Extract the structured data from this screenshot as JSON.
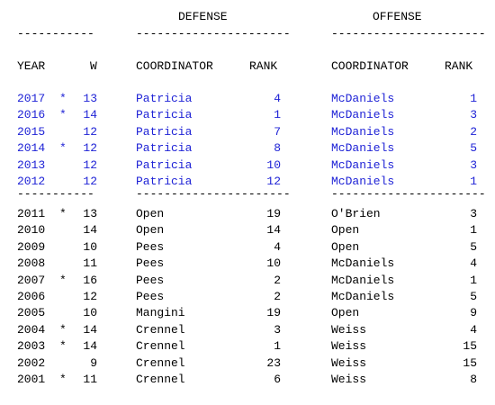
{
  "headers": {
    "defense": "DEFENSE",
    "offense": "OFFENSE"
  },
  "dashes": {
    "year_w": "-----------",
    "defense": "----------------------",
    "offense": "----------------------"
  },
  "columns": {
    "year": "YEAR",
    "w": "W",
    "def_coord": "COORDINATOR",
    "def_rank": "RANK",
    "off_coord": "COORDINATOR",
    "off_rank": "RANK"
  },
  "colors": {
    "highlight": "#1f23d6",
    "text": "#000000"
  },
  "recent_rows": [
    {
      "year": "2017",
      "star": "*",
      "w": "13",
      "def_coord": "Patricia",
      "def_rank": "4",
      "off_coord": "McDaniels",
      "off_rank": "1"
    },
    {
      "year": "2016",
      "star": "*",
      "w": "14",
      "def_coord": "Patricia",
      "def_rank": "1",
      "off_coord": "McDaniels",
      "off_rank": "3"
    },
    {
      "year": "2015",
      "star": "",
      "w": "12",
      "def_coord": "Patricia",
      "def_rank": "7",
      "off_coord": "McDaniels",
      "off_rank": "2"
    },
    {
      "year": "2014",
      "star": "*",
      "w": "12",
      "def_coord": "Patricia",
      "def_rank": "8",
      "off_coord": "McDaniels",
      "off_rank": "5"
    },
    {
      "year": "2013",
      "star": "",
      "w": "12",
      "def_coord": "Patricia",
      "def_rank": "10",
      "off_coord": "McDaniels",
      "off_rank": "3"
    },
    {
      "year": "2012",
      "star": "",
      "w": "12",
      "def_coord": "Patricia",
      "def_rank": "12",
      "off_coord": "McDaniels",
      "off_rank": "1"
    }
  ],
  "older_rows": [
    {
      "year": "2011",
      "star": "*",
      "w": "13",
      "def_coord": "Open",
      "def_rank": "19",
      "off_coord": "O'Brien",
      "off_rank": "3"
    },
    {
      "year": "2010",
      "star": "",
      "w": "14",
      "def_coord": "Open",
      "def_rank": "14",
      "off_coord": "Open",
      "off_rank": "1"
    },
    {
      "year": "2009",
      "star": "",
      "w": "10",
      "def_coord": "Pees",
      "def_rank": "4",
      "off_coord": "Open",
      "off_rank": "5"
    },
    {
      "year": "2008",
      "star": "",
      "w": "11",
      "def_coord": "Pees",
      "def_rank": "10",
      "off_coord": "McDaniels",
      "off_rank": "4"
    },
    {
      "year": "2007",
      "star": "*",
      "w": "16",
      "def_coord": "Pees",
      "def_rank": "2",
      "off_coord": "McDaniels",
      "off_rank": "1"
    },
    {
      "year": "2006",
      "star": "",
      "w": "12",
      "def_coord": "Pees",
      "def_rank": "2",
      "off_coord": "McDaniels",
      "off_rank": "5"
    },
    {
      "year": "2005",
      "star": "",
      "w": "10",
      "def_coord": "Mangini",
      "def_rank": "19",
      "off_coord": "Open",
      "off_rank": "9"
    },
    {
      "year": "2004",
      "star": "*",
      "w": "14",
      "def_coord": "Crennel",
      "def_rank": "3",
      "off_coord": "Weiss",
      "off_rank": "4"
    },
    {
      "year": "2003",
      "star": "*",
      "w": "14",
      "def_coord": "Crennel",
      "def_rank": "1",
      "off_coord": "Weiss",
      "off_rank": "15"
    },
    {
      "year": "2002",
      "star": "",
      "w": "9",
      "def_coord": "Crennel",
      "def_rank": "23",
      "off_coord": "Weiss",
      "off_rank": "15"
    },
    {
      "year": "2001",
      "star": "*",
      "w": "11",
      "def_coord": "Crennel",
      "def_rank": "6",
      "off_coord": "Weiss",
      "off_rank": "8"
    }
  ]
}
